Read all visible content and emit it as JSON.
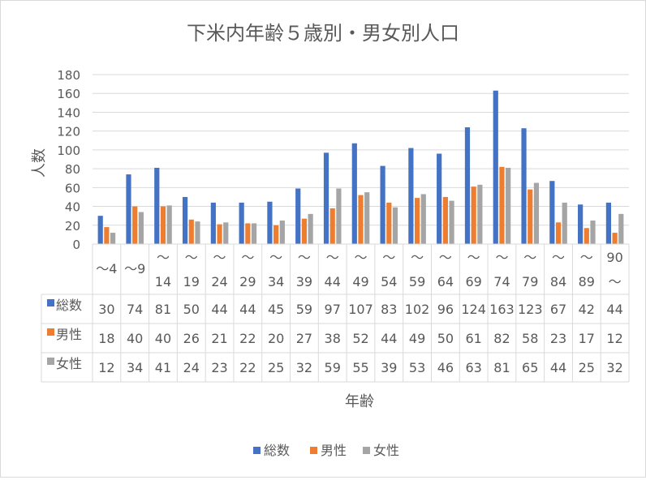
{
  "chart_data": {
    "type": "bar",
    "title": "下米内年齢５歳別・男女別人口",
    "xlabel": "年齢",
    "ylabel": "人数",
    "ylim": [
      0,
      180
    ],
    "yticks": [
      0,
      20,
      40,
      60,
      80,
      100,
      120,
      140,
      160,
      180
    ],
    "grid": true,
    "legend_position": "bottom",
    "data_table": true,
    "categories": [
      [
        "～4"
      ],
      [
        "～9"
      ],
      [
        "～",
        "14"
      ],
      [
        "～",
        "19"
      ],
      [
        "～",
        "24"
      ],
      [
        "～",
        "29"
      ],
      [
        "～",
        "34"
      ],
      [
        "～",
        "39"
      ],
      [
        "～",
        "44"
      ],
      [
        "～",
        "49"
      ],
      [
        "～",
        "54"
      ],
      [
        "～",
        "59"
      ],
      [
        "～",
        "64"
      ],
      [
        "～",
        "69"
      ],
      [
        "～",
        "74"
      ],
      [
        "～",
        "79"
      ],
      [
        "～",
        "84"
      ],
      [
        "～",
        "89"
      ],
      [
        "90",
        "～"
      ]
    ],
    "series": [
      {
        "name": "総数",
        "color": "#4472c4",
        "values": [
          30,
          74,
          81,
          50,
          44,
          44,
          45,
          59,
          97,
          107,
          83,
          102,
          96,
          124,
          163,
          123,
          67,
          42,
          44
        ]
      },
      {
        "name": "男性",
        "color": "#ed7d31",
        "values": [
          18,
          40,
          40,
          26,
          21,
          22,
          20,
          27,
          38,
          52,
          44,
          49,
          50,
          61,
          82,
          58,
          23,
          17,
          12
        ]
      },
      {
        "name": "女性",
        "color": "#a5a5a5",
        "values": [
          12,
          34,
          41,
          24,
          23,
          22,
          25,
          32,
          59,
          55,
          39,
          53,
          46,
          63,
          81,
          65,
          44,
          25,
          32
        ]
      }
    ]
  }
}
